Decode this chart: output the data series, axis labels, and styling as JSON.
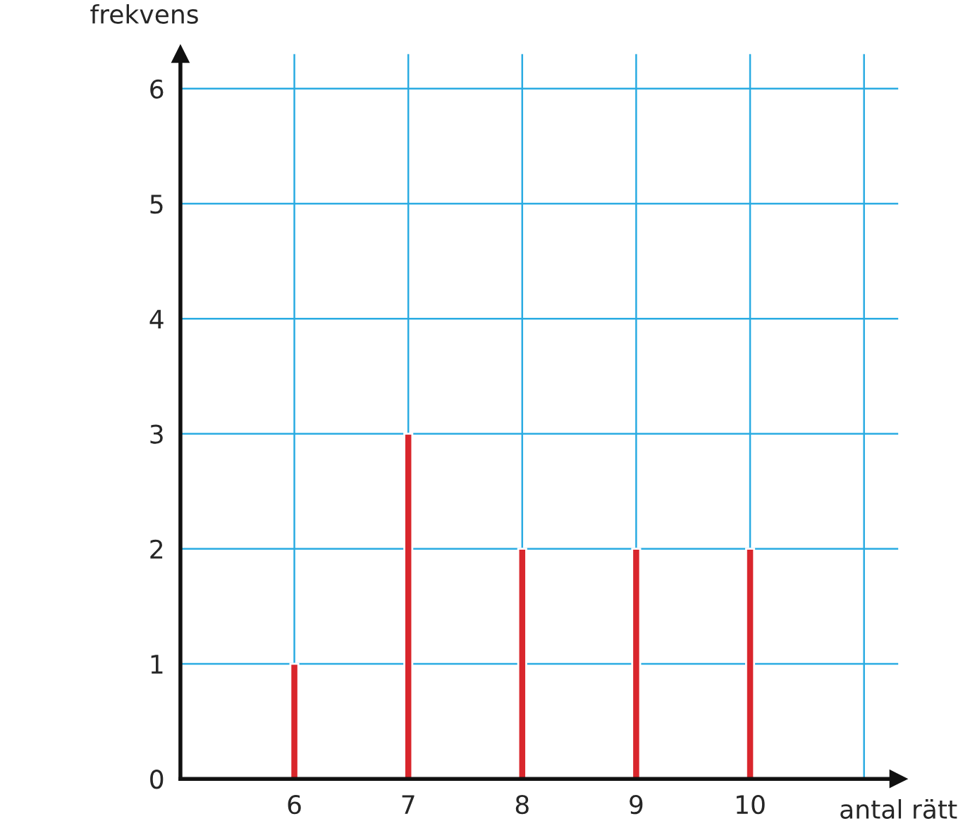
{
  "chart_data": {
    "type": "bar",
    "xlabel": "antal rätt",
    "ylabel": "frekvens",
    "x": [
      6,
      7,
      8,
      9,
      10
    ],
    "values": [
      1,
      3,
      2,
      2,
      2
    ],
    "color": "#d9262c",
    "xlim": [
      5,
      11.3
    ],
    "xticks": [
      6,
      7,
      8,
      9,
      10,
      {
        "value": 11,
        "label": null
      }
    ],
    "ylim": [
      0,
      6.3
    ],
    "yticks": [
      0,
      1,
      2,
      3,
      4,
      5,
      6
    ],
    "grid": true
  }
}
